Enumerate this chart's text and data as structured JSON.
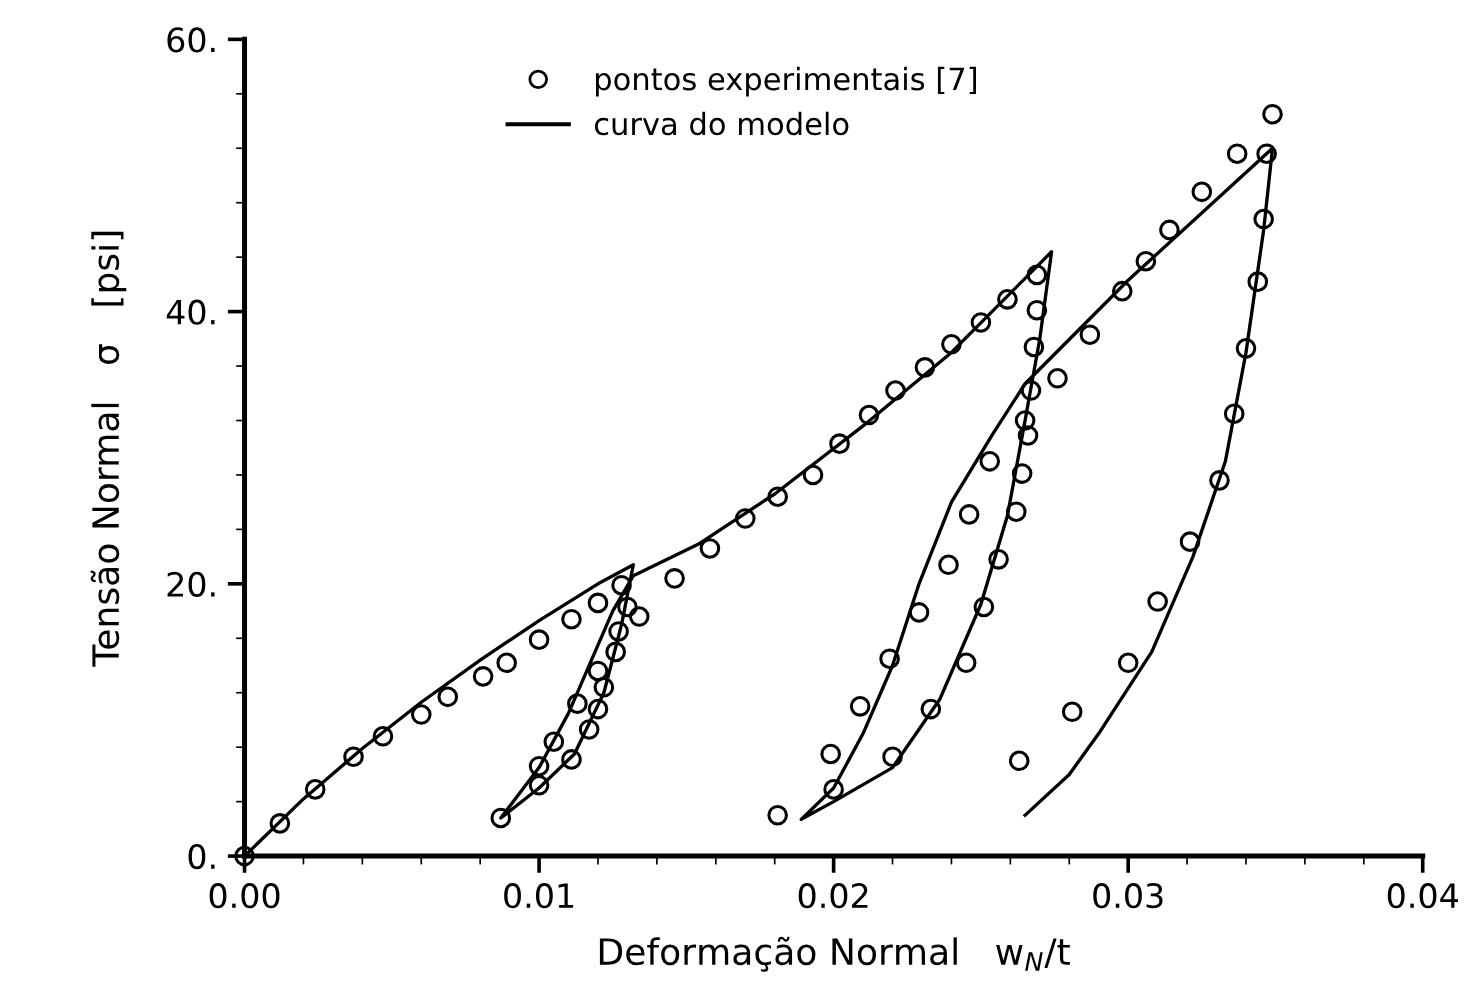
{
  "chart_data": {
    "type": "scatter",
    "xlabel": "Deformação Normal   w$_{N}$/t",
    "ylabel": "Tensão Normal   σ   [psi]",
    "xlim": [
      0,
      0.04
    ],
    "ylim": [
      0,
      60
    ],
    "xticks": [
      {
        "value": 0,
        "label": "0.00"
      },
      {
        "value": 0.01,
        "label": "0.01"
      },
      {
        "value": 0.02,
        "label": "0.02"
      },
      {
        "value": 0.03,
        "label": "0.03"
      },
      {
        "value": 0.04,
        "label": "0.04"
      }
    ],
    "yticks": [
      {
        "value": 0,
        "label": "0."
      },
      {
        "value": 20,
        "label": "20."
      },
      {
        "value": 40,
        "label": "40."
      },
      {
        "value": 60,
        "label": "60."
      }
    ],
    "grid": false,
    "legend": "top left",
    "series": [
      {
        "name": "pontos experimentais [7]",
        "marker": "circle",
        "color": "#000000",
        "x": [
          0,
          0.0012,
          0.0024,
          0.0037,
          0.0047,
          0.006,
          0.0069,
          0.0081,
          0.0089,
          0.01,
          0.0111,
          0.012,
          0.0128,
          0.013,
          0.0134,
          0.0127,
          0.0126,
          0.012,
          0.0122,
          0.0113,
          0.012,
          0.0117,
          0.0105,
          0.0111,
          0.01,
          0.01,
          0.0087,
          0.0146,
          0.0158,
          0.017,
          0.0181,
          0.0193,
          0.0202,
          0.0212,
          0.0221,
          0.0231,
          0.024,
          0.025,
          0.0259,
          0.0269,
          0.0269,
          0.0268,
          0.0267,
          0.0265,
          0.0266,
          0.0264,
          0.0262,
          0.0256,
          0.0251,
          0.0245,
          0.0233,
          0.022,
          0.02,
          0.0276,
          0.0253,
          0.0246,
          0.0239,
          0.0229,
          0.0219,
          0.0209,
          0.0199,
          0.0181,
          0.0287,
          0.0298,
          0.0306,
          0.0314,
          0.0325,
          0.0337,
          0.0347,
          0.0349,
          0.0346,
          0.0344,
          0.034,
          0.0336,
          0.0331,
          0.0321,
          0.031,
          0.03,
          0.0281,
          0.0263
        ],
        "values": [
          0,
          2.4,
          4.9,
          7.3,
          8.8,
          10.4,
          11.7,
          13.2,
          14.2,
          15.9,
          17.4,
          18.6,
          19.9,
          18.3,
          17.6,
          16.5,
          15.0,
          13.6,
          12.4,
          11.2,
          10.8,
          9.3,
          8.4,
          7.1,
          6.6,
          5.2,
          2.8,
          20.4,
          22.6,
          24.8,
          26.4,
          28.0,
          30.3,
          32.4,
          34.2,
          35.9,
          37.6,
          39.2,
          40.9,
          42.7,
          40.1,
          37.4,
          34.2,
          32.0,
          30.9,
          28.1,
          25.3,
          21.8,
          18.3,
          14.2,
          10.8,
          7.3,
          4.9,
          35.1,
          29.0,
          25.1,
          21.4,
          17.9,
          14.5,
          11.0,
          7.5,
          3.0,
          38.3,
          41.5,
          43.7,
          46.0,
          48.8,
          51.6,
          51.6,
          54.5,
          46.8,
          42.2,
          37.3,
          32.5,
          27.6,
          23.1,
          18.7,
          14.2,
          10.6,
          7.0
        ]
      },
      {
        "name": "curva do modelo",
        "type": "line",
        "marker": "none",
        "line_style": "solid",
        "color": "#000000",
        "x": [
          0,
          0.002,
          0.004,
          0.006,
          0.008,
          0.01,
          0.012,
          0.0132,
          0.0128,
          0.0122,
          0.0112,
          0.01,
          0.0087,
          0.01,
          0.011,
          0.0118,
          0.0125,
          0.0132,
          0.0154,
          0.018,
          0.021,
          0.024,
          0.0274,
          0.027,
          0.0265,
          0.0259,
          0.025,
          0.0236,
          0.022,
          0.02,
          0.0189,
          0.02,
          0.021,
          0.022,
          0.0229,
          0.024,
          0.0254,
          0.0265,
          0.03,
          0.0349,
          0.0346,
          0.034,
          0.0333,
          0.0322,
          0.0308,
          0.029,
          0.028,
          0.0265
        ],
        "values": [
          0,
          4.2,
          7.9,
          11.3,
          14.4,
          17.3,
          20.0,
          21.4,
          17,
          12,
          7.5,
          5,
          2.8,
          6.5,
          10.5,
          14.5,
          18,
          20.6,
          22.9,
          26.6,
          31.6,
          37.0,
          44.4,
          38,
          32,
          25,
          18.5,
          11.5,
          6.5,
          4,
          2.7,
          5,
          9,
          14,
          20,
          26,
          31,
          34.7,
          42.3,
          52.0,
          46,
          37,
          29,
          22,
          15,
          9,
          6,
          3.0
        ]
      }
    ]
  }
}
